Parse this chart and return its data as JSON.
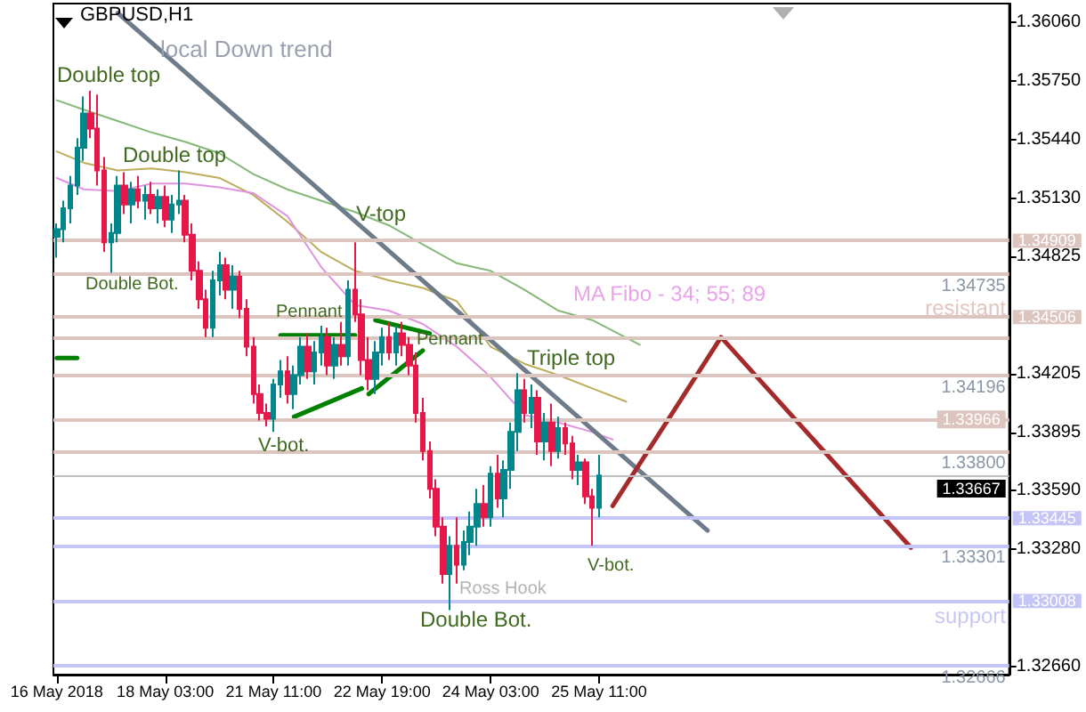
{
  "chart_data": {
    "type": "candlestick",
    "categories": [
      "16 May 2018",
      null,
      null,
      null,
      null,
      null,
      null,
      null,
      null,
      null,
      null,
      null,
      null,
      null,
      null,
      null,
      "18 May 03:00",
      null,
      null,
      null,
      null,
      null,
      null,
      null,
      null,
      null,
      null,
      null,
      null,
      null,
      null,
      null,
      "21 May 11:00",
      null,
      null,
      null,
      null,
      null,
      null,
      null,
      null,
      null,
      null,
      null,
      null,
      null,
      null,
      null,
      "22 May 19:00",
      null,
      null,
      null,
      null,
      null,
      null,
      null,
      null,
      null,
      null,
      null,
      null,
      null,
      null,
      null,
      "24 May 03:00",
      null,
      null,
      null,
      null,
      null,
      null,
      null,
      null,
      null,
      null,
      null,
      null,
      null,
      null,
      null,
      "25 May 11:00",
      null,
      null,
      null,
      null,
      null,
      null,
      null,
      null,
      null,
      null,
      null,
      null,
      null,
      null,
      null,
      null,
      null,
      null,
      null,
      null,
      null,
      null,
      null,
      null,
      null,
      null,
      null,
      null,
      null,
      null,
      null,
      null,
      null,
      null,
      null,
      null,
      null,
      null,
      null,
      null,
      null,
      null,
      null,
      null,
      null,
      null,
      null,
      null,
      null,
      null,
      null,
      null,
      null,
      null,
      null,
      null,
      null,
      null,
      null,
      null
    ],
    "ohlc": [
      [
        1.3493,
        1.35,
        1.3482,
        1.3497
      ],
      [
        1.3497,
        1.3512,
        1.349,
        1.3508
      ],
      [
        1.3508,
        1.3525,
        1.35,
        1.352
      ],
      [
        1.352,
        1.3545,
        1.3515,
        1.354
      ],
      [
        1.354,
        1.3567,
        1.3533,
        1.3558
      ],
      [
        1.3558,
        1.357,
        1.3545,
        1.355
      ],
      [
        1.355,
        1.3568,
        1.352,
        1.3528
      ],
      [
        1.3528,
        1.3535,
        1.3485,
        1.349
      ],
      [
        1.349,
        1.35,
        1.3474,
        1.3495
      ],
      [
        1.3495,
        1.3525,
        1.349,
        1.352
      ],
      [
        1.352,
        1.3527,
        1.3505,
        1.351
      ],
      [
        1.351,
        1.3522,
        1.35,
        1.3518
      ],
      [
        1.3518,
        1.3525,
        1.3508,
        1.3512
      ],
      [
        1.3512,
        1.352,
        1.3502,
        1.3515
      ],
      [
        1.3515,
        1.3522,
        1.3505,
        1.3508
      ],
      [
        1.3508,
        1.3518,
        1.35,
        1.3514
      ],
      [
        1.3514,
        1.352,
        1.3498,
        1.3502
      ],
      [
        1.3502,
        1.3515,
        1.3495,
        1.351
      ],
      [
        1.351,
        1.3528,
        1.3505,
        1.3512
      ],
      [
        1.3512,
        1.3515,
        1.349,
        1.3494
      ],
      [
        1.3494,
        1.35,
        1.347,
        1.3475
      ],
      [
        1.3475,
        1.348,
        1.3455,
        1.346
      ],
      [
        1.346,
        1.3465,
        1.344,
        1.3445
      ],
      [
        1.3445,
        1.3475,
        1.344,
        1.347
      ],
      [
        1.347,
        1.3485,
        1.3462,
        1.3478
      ],
      [
        1.3478,
        1.3482,
        1.346,
        1.3465
      ],
      [
        1.3465,
        1.3478,
        1.3455,
        1.3472
      ],
      [
        1.3472,
        1.3475,
        1.345,
        1.3455
      ],
      [
        1.3455,
        1.346,
        1.343,
        1.3435
      ],
      [
        1.3435,
        1.344,
        1.3405,
        1.341
      ],
      [
        1.341,
        1.3415,
        1.3396,
        1.34
      ],
      [
        1.34,
        1.3405,
        1.3393,
        1.3397
      ],
      [
        1.3397,
        1.3418,
        1.339,
        1.3415
      ],
      [
        1.3415,
        1.3428,
        1.3408,
        1.3422
      ],
      [
        1.3422,
        1.343,
        1.3405,
        1.341
      ],
      [
        1.341,
        1.3425,
        1.3402,
        1.342
      ],
      [
        1.342,
        1.344,
        1.3415,
        1.3435
      ],
      [
        1.3435,
        1.3442,
        1.3418,
        1.3422
      ],
      [
        1.3422,
        1.3438,
        1.3415,
        1.3432
      ],
      [
        1.3432,
        1.3446,
        1.3425,
        1.344
      ],
      [
        1.344,
        1.3445,
        1.342,
        1.3425
      ],
      [
        1.3425,
        1.344,
        1.3418,
        1.3436
      ],
      [
        1.3436,
        1.3448,
        1.3425,
        1.343
      ],
      [
        1.343,
        1.347,
        1.3425,
        1.3465
      ],
      [
        1.3465,
        1.349,
        1.3448,
        1.3452
      ],
      [
        1.3452,
        1.346,
        1.342,
        1.3428
      ],
      [
        1.3428,
        1.344,
        1.3412,
        1.3418
      ],
      [
        1.3418,
        1.3438,
        1.341,
        1.3432
      ],
      [
        1.3432,
        1.3445,
        1.3425,
        1.344
      ],
      [
        1.344,
        1.3448,
        1.3428,
        1.3432
      ],
      [
        1.3432,
        1.3446,
        1.3425,
        1.3442
      ],
      [
        1.3442,
        1.3448,
        1.343,
        1.3436
      ],
      [
        1.3436,
        1.344,
        1.342,
        1.3425
      ],
      [
        1.3425,
        1.3432,
        1.3395,
        1.34
      ],
      [
        1.34,
        1.3408,
        1.3375,
        1.338
      ],
      [
        1.338,
        1.3385,
        1.3355,
        1.336
      ],
      [
        1.336,
        1.3365,
        1.3335,
        1.334
      ],
      [
        1.334,
        1.3345,
        1.331,
        1.3315
      ],
      [
        1.3315,
        1.3335,
        1.3296,
        1.333
      ],
      [
        1.333,
        1.3345,
        1.331,
        1.332
      ],
      [
        1.332,
        1.3338,
        1.3317,
        1.3332
      ],
      [
        1.3332,
        1.3348,
        1.3325,
        1.334
      ],
      [
        1.334,
        1.336,
        1.333,
        1.3352
      ],
      [
        1.3352,
        1.3362,
        1.334,
        1.3345
      ],
      [
        1.3345,
        1.3372,
        1.334,
        1.3368
      ],
      [
        1.3368,
        1.3378,
        1.335,
        1.3355
      ],
      [
        1.3355,
        1.3375,
        1.3345,
        1.337
      ],
      [
        1.337,
        1.3395,
        1.336,
        1.339
      ],
      [
        1.339,
        1.3421,
        1.338,
        1.3412
      ],
      [
        1.3412,
        1.3418,
        1.3395,
        1.34
      ],
      [
        1.34,
        1.3415,
        1.3392,
        1.3408
      ],
      [
        1.3408,
        1.3412,
        1.3378,
        1.3385
      ],
      [
        1.3385,
        1.34,
        1.3375,
        1.3395
      ],
      [
        1.3395,
        1.3405,
        1.3372,
        1.338
      ],
      [
        1.338,
        1.3398,
        1.3376,
        1.3392
      ],
      [
        1.3392,
        1.3395,
        1.3378,
        1.3384
      ],
      [
        1.3384,
        1.3388,
        1.3365,
        1.337
      ],
      [
        1.337,
        1.3378,
        1.3362,
        1.3374
      ],
      [
        1.3374,
        1.3376,
        1.3352,
        1.3356
      ],
      [
        1.3356,
        1.336,
        1.333,
        1.335
      ],
      [
        1.335,
        1.3378,
        1.3345,
        1.3367
      ],
      null,
      null,
      null,
      null,
      null,
      null,
      null,
      null,
      null,
      null,
      null,
      null,
      null,
      null,
      null,
      null,
      null,
      null,
      null,
      null,
      null,
      null,
      null,
      null,
      null,
      null,
      null,
      null,
      null,
      null,
      null,
      null,
      null,
      null,
      null,
      null,
      null,
      null,
      null,
      null,
      null,
      null,
      null,
      null,
      null,
      null,
      null,
      null,
      null,
      null,
      null,
      null,
      null,
      null,
      null,
      null,
      null,
      null,
      null,
      null
    ],
    "colors": [
      "#00868b",
      "#00868b",
      "#00868b",
      "#00868b",
      "#00868b",
      "#e8174a",
      "#e8174a",
      "#e8174a",
      "#00868b",
      "#00868b",
      "#e8174a",
      "#00868b",
      "#e8174a",
      "#00868b",
      "#e8174a",
      "#00868b",
      "#e8174a",
      "#00868b",
      "#00868b",
      "#e8174a",
      "#e8174a",
      "#e8174a",
      "#e8174a",
      "#00868b",
      "#00868b",
      "#e8174a",
      "#00868b",
      "#e8174a",
      "#e8174a",
      "#e8174a",
      "#e8174a",
      "#e8174a",
      "#00868b",
      "#00868b",
      "#e8174a",
      "#00868b",
      "#00868b",
      "#e8174a",
      "#00868b",
      "#00868b",
      "#e8174a",
      "#00868b",
      "#e8174a",
      "#00868b",
      "#e8174a",
      "#e8174a",
      "#e8174a",
      "#00868b",
      "#00868b",
      "#e8174a",
      "#00868b",
      "#e8174a",
      "#e8174a",
      "#e8174a",
      "#e8174a",
      "#e8174a",
      "#e8174a",
      "#e8174a",
      "#00868b",
      "#e8174a",
      "#00868b",
      "#00868b",
      "#00868b",
      "#e8174a",
      "#00868b",
      "#e8174a",
      "#00868b",
      "#00868b",
      "#00868b",
      "#e8174a",
      "#00868b",
      "#e8174a",
      "#00868b",
      "#e8174a",
      "#00868b",
      "#e8174a",
      "#e8174a",
      "#00868b",
      "#e8174a",
      "#e8174a",
      "#00868b",
      null,
      null,
      null,
      null,
      null,
      null,
      null,
      null,
      null,
      null,
      null,
      null,
      null,
      null,
      null,
      null,
      null,
      null,
      null,
      null,
      null,
      null,
      null,
      null,
      null,
      null,
      null,
      null,
      null,
      null,
      null,
      null,
      null,
      null,
      null,
      null,
      null,
      null,
      null,
      null,
      null,
      null,
      null,
      null,
      null,
      null,
      null,
      null,
      null,
      null,
      null,
      null,
      null,
      null,
      null,
      null,
      null,
      null,
      null,
      null
    ],
    "series": [
      {
        "type": "line",
        "color": "#86b878",
        "values": [
          1.3565,
          null,
          null,
          null,
          1.356,
          null,
          null,
          null,
          null,
          1.3554,
          null,
          null,
          null,
          null,
          1.3548,
          null,
          null,
          null,
          null,
          1.3543,
          null,
          null,
          null,
          null,
          1.3537,
          null,
          null,
          null,
          null,
          1.3526,
          null,
          null,
          null,
          null,
          1.3518,
          null,
          null,
          null,
          null,
          1.3512,
          null,
          null,
          null,
          null,
          1.3506,
          null,
          null,
          null,
          null,
          1.3499,
          null,
          null,
          null,
          null,
          1.3489,
          null,
          null,
          null,
          null,
          1.3479,
          null,
          null,
          null,
          null,
          1.3475,
          null,
          null,
          null,
          null,
          1.3465,
          null,
          null,
          null,
          null,
          1.3454,
          null,
          null,
          null,
          null,
          1.3449,
          null,
          null,
          null,
          null,
          null,
          null,
          1.3436,
          null,
          null,
          null,
          null,
          null,
          null,
          null,
          null,
          null,
          null,
          null,
          null,
          null,
          null,
          null,
          null,
          null,
          null,
          null,
          null,
          null,
          null,
          null,
          null,
          null,
          null,
          null,
          null,
          null,
          null,
          null,
          null,
          null,
          null,
          null,
          null,
          null,
          null,
          null,
          null,
          null,
          null,
          null,
          null,
          null,
          null,
          null,
          null,
          null,
          null,
          null,
          null,
          null,
          null
        ]
      },
      {
        "type": "line",
        "color": "#bcae5c",
        "values": [
          1.3538,
          null,
          null,
          null,
          1.3532,
          null,
          null,
          null,
          null,
          1.3528,
          null,
          null,
          null,
          null,
          1.3529,
          null,
          null,
          null,
          null,
          1.3527,
          null,
          null,
          null,
          null,
          1.3524,
          null,
          null,
          null,
          null,
          1.3515,
          null,
          null,
          null,
          null,
          1.3501,
          null,
          null,
          null,
          null,
          1.3485,
          null,
          null,
          null,
          null,
          1.3475,
          null,
          null,
          null,
          null,
          1.347,
          null,
          null,
          null,
          null,
          1.3466,
          null,
          null,
          null,
          null,
          1.3459,
          null,
          null,
          null,
          null,
          1.3435,
          null,
          null,
          null,
          null,
          1.3426,
          null,
          null,
          null,
          null,
          1.342,
          null,
          null,
          null,
          null,
          1.3413,
          null,
          null,
          null,
          null,
          1.3406,
          null,
          null,
          null,
          null,
          null,
          null,
          null,
          null,
          null,
          null,
          null,
          null,
          null,
          null,
          null,
          null,
          null,
          null,
          null,
          null,
          null,
          null,
          null,
          null,
          null,
          null,
          null,
          null,
          null,
          null,
          null,
          null,
          null,
          null,
          null,
          null,
          null,
          null,
          null,
          null,
          null,
          null,
          null,
          null,
          null,
          null,
          null,
          null,
          null,
          null,
          null,
          null,
          null,
          null,
          null,
          null
        ]
      },
      {
        "type": "line",
        "color": "#e092e0",
        "values": [
          1.3524,
          null,
          null,
          null,
          1.3518,
          null,
          null,
          null,
          null,
          1.3517,
          null,
          null,
          null,
          null,
          1.3521,
          null,
          null,
          null,
          null,
          1.3521,
          null,
          null,
          null,
          null,
          1.3519,
          null,
          null,
          null,
          null,
          1.3516,
          null,
          null,
          null,
          null,
          1.3504,
          null,
          null,
          null,
          null,
          1.3477,
          null,
          null,
          null,
          null,
          1.3457,
          null,
          null,
          null,
          null,
          1.3454,
          null,
          null,
          null,
          null,
          1.3447,
          null,
          null,
          null,
          null,
          1.3435,
          null,
          null,
          null,
          null,
          1.3419,
          null,
          null,
          null,
          null,
          1.3399,
          null,
          null,
          null,
          null,
          1.3395,
          null,
          null,
          null,
          null,
          1.339,
          null,
          null,
          1.3386,
          null,
          null,
          null,
          null,
          null,
          null,
          null,
          null,
          null,
          null,
          null,
          null,
          null,
          null,
          null,
          null,
          null,
          null,
          null,
          null,
          null,
          null,
          null,
          null,
          null,
          null,
          null,
          null,
          null,
          null,
          null,
          null,
          null,
          null,
          null,
          null,
          null,
          null,
          null,
          null,
          null,
          null,
          null,
          null,
          null,
          null,
          null,
          null,
          null,
          null,
          null,
          null,
          null,
          null,
          null,
          null,
          null,
          null
        ]
      },
      {
        "type": "line",
        "color": "#6e7b8b",
        "values": [
          null,
          null,
          null,
          null,
          null,
          null,
          null,
          null,
          null,
          1.3611,
          null,
          null,
          null,
          null,
          null,
          null,
          null,
          null,
          null,
          null,
          null,
          null,
          null,
          null,
          null,
          null,
          null,
          null,
          null,
          null,
          null,
          null,
          null,
          null,
          null,
          null,
          null,
          null,
          null,
          null,
          null,
          null,
          null,
          null,
          null,
          null,
          null,
          null,
          null,
          null,
          null,
          null,
          null,
          null,
          null,
          null,
          null,
          null,
          null,
          null,
          null,
          null,
          null,
          null,
          null,
          null,
          null,
          null,
          null,
          null,
          null,
          null,
          null,
          null,
          null,
          null,
          null,
          null,
          null,
          null,
          null,
          null,
          null,
          null,
          null,
          null,
          null,
          null,
          null,
          null,
          null,
          null,
          null,
          null,
          null,
          null,
          1.3338,
          null,
          null,
          null,
          null,
          null,
          null,
          null,
          null,
          null,
          null,
          null,
          null,
          null,
          null,
          null,
          null,
          null,
          null,
          null,
          null,
          null,
          null,
          null,
          null,
          null,
          null,
          null,
          null,
          null,
          null,
          null,
          null,
          null,
          null,
          null,
          null,
          null,
          null,
          null,
          null,
          null,
          null,
          null,
          null
        ]
      },
      {
        "type": "line",
        "color": "#a52a2a",
        "values": [
          null,
          null,
          null,
          null,
          null,
          null,
          null,
          null,
          null,
          null,
          null,
          null,
          null,
          null,
          null,
          null,
          null,
          null,
          null,
          null,
          null,
          null,
          null,
          null,
          null,
          null,
          null,
          null,
          null,
          null,
          null,
          null,
          null,
          null,
          null,
          null,
          null,
          null,
          null,
          null,
          null,
          null,
          null,
          null,
          null,
          null,
          null,
          null,
          null,
          null,
          null,
          null,
          null,
          null,
          null,
          null,
          null,
          null,
          null,
          null,
          null,
          null,
          null,
          null,
          null,
          null,
          null,
          null,
          null,
          null,
          null,
          null,
          null,
          null,
          null,
          null,
          null,
          null,
          null,
          null,
          null,
          null,
          1.3351,
          null,
          null,
          null,
          null,
          null,
          null,
          null,
          null,
          null,
          null,
          null,
          null,
          null,
          null,
          null,
          1.344,
          null,
          null,
          null,
          null,
          null,
          null,
          null,
          null,
          null,
          null,
          null,
          null,
          null,
          null,
          null,
          null,
          null,
          null,
          null,
          null,
          null,
          null,
          null,
          null,
          null,
          null,
          null,
          1.3329,
          null,
          null,
          null,
          null,
          null,
          null,
          null,
          null,
          null,
          null,
          null,
          null,
          null,
          null
        ]
      },
      {
        "type": "line",
        "color": "#008000",
        "values": [
          1.3429,
          null,
          null,
          1.3429,
          null,
          null,
          null,
          null,
          null,
          null,
          null,
          null,
          null,
          null,
          null,
          null,
          null,
          null,
          null,
          null,
          null,
          null,
          null,
          null,
          null,
          null,
          null,
          null,
          null,
          null,
          null,
          null,
          null,
          null,
          null,
          null,
          null,
          null,
          null,
          null,
          null,
          null,
          null,
          null,
          null,
          null,
          null,
          null,
          null,
          null,
          null,
          null,
          null,
          null,
          null,
          null,
          null,
          null,
          null,
          null,
          null,
          null,
          null,
          null,
          null,
          null,
          null,
          null,
          null,
          null,
          null,
          null,
          null,
          null,
          null,
          null,
          null,
          null,
          null,
          null,
          null,
          null,
          null,
          null,
          null,
          null,
          null,
          null,
          null,
          null,
          null,
          null,
          null,
          null,
          null,
          null,
          null,
          null,
          null,
          null,
          null,
          null,
          null,
          null,
          null,
          null,
          null,
          null,
          null,
          null,
          null,
          null,
          null,
          null,
          null,
          null,
          null,
          null,
          null,
          null,
          null,
          null,
          null,
          null,
          null,
          null,
          null,
          null,
          null,
          null,
          null,
          null,
          null,
          null,
          null,
          null,
          null,
          null,
          null,
          null,
          null
        ]
      },
      {
        "type": "line",
        "color": "#008000",
        "values": [
          null,
          null,
          null,
          null,
          null,
          null,
          null,
          null,
          null,
          null,
          null,
          null,
          null,
          null,
          null,
          null,
          null,
          null,
          null,
          null,
          null,
          null,
          null,
          null,
          null,
          null,
          null,
          null,
          null,
          null,
          null,
          null,
          null,
          1.3441,
          null,
          null,
          null,
          null,
          null,
          null,
          null,
          null,
          null,
          null,
          1.3441,
          null,
          null,
          null,
          null,
          null,
          null,
          null,
          null,
          null,
          null,
          null,
          null,
          null,
          null,
          null,
          null,
          null,
          null,
          null,
          null,
          null,
          null,
          null,
          null,
          null,
          null,
          null,
          null,
          null,
          null,
          null,
          null,
          null,
          null,
          null,
          null,
          null,
          null,
          null,
          null,
          null,
          null,
          null,
          null,
          null,
          null,
          null,
          null,
          null,
          null,
          null,
          null,
          null,
          null,
          null,
          null,
          null,
          null,
          null,
          null,
          null,
          null,
          null,
          null,
          null,
          null,
          null,
          null,
          null,
          null,
          null,
          null,
          null,
          null,
          null,
          null,
          null,
          null,
          null,
          null,
          null,
          null,
          null,
          null,
          null,
          null,
          null,
          null,
          null,
          null,
          null,
          null,
          null,
          null,
          null,
          null
        ]
      },
      {
        "type": "line",
        "color": "#008000",
        "values": [
          null,
          null,
          null,
          null,
          null,
          null,
          null,
          null,
          null,
          null,
          null,
          null,
          null,
          null,
          null,
          null,
          null,
          null,
          null,
          null,
          null,
          null,
          null,
          null,
          null,
          null,
          null,
          null,
          null,
          null,
          null,
          null,
          null,
          null,
          null,
          1.3398,
          null,
          null,
          null,
          null,
          null,
          null,
          null,
          null,
          null,
          1.3413,
          null,
          null,
          null,
          null,
          null,
          null,
          null,
          null,
          null,
          null,
          null,
          null,
          null,
          null,
          null,
          null,
          null,
          null,
          null,
          null,
          null,
          null,
          null,
          null,
          null,
          null,
          null,
          null,
          null,
          null,
          null,
          null,
          null,
          null,
          null,
          null,
          null,
          null,
          null,
          null,
          null,
          null,
          null,
          null,
          null,
          null,
          null,
          null,
          null,
          null,
          null,
          null,
          null,
          null,
          null,
          null,
          null,
          null,
          null,
          null,
          null,
          null,
          null,
          null,
          null,
          null,
          null,
          null,
          null,
          null,
          null,
          null,
          null,
          null,
          null,
          null,
          null,
          null,
          null,
          null,
          null,
          null,
          null,
          null,
          null,
          null,
          null,
          null,
          null,
          null,
          null,
          null,
          null,
          null,
          null
        ]
      },
      {
        "type": "line",
        "color": "#008000",
        "values": [
          null,
          null,
          null,
          null,
          null,
          null,
          null,
          null,
          null,
          null,
          null,
          null,
          null,
          null,
          null,
          null,
          null,
          null,
          null,
          null,
          null,
          null,
          null,
          null,
          null,
          null,
          null,
          null,
          null,
          null,
          null,
          null,
          null,
          null,
          null,
          null,
          null,
          null,
          null,
          null,
          null,
          null,
          null,
          null,
          null,
          null,
          null,
          1.3449,
          null,
          null,
          null,
          null,
          null,
          null,
          null,
          1.3442,
          null,
          null,
          null,
          null,
          null,
          null,
          null,
          null,
          null,
          null,
          null,
          null,
          null,
          null,
          null,
          null,
          null,
          null,
          null,
          null,
          null,
          null,
          null,
          null,
          null,
          null,
          null,
          null,
          null,
          null,
          null,
          null,
          null,
          null,
          null,
          null,
          null,
          null,
          null,
          null,
          null,
          null,
          null,
          null,
          null,
          null,
          null,
          null,
          null,
          null,
          null,
          null,
          null,
          null,
          null,
          null,
          null,
          null,
          null,
          null,
          null,
          null,
          null,
          null,
          null,
          null,
          null,
          null,
          null,
          null,
          null,
          null,
          null,
          null,
          null,
          null,
          null,
          null,
          null,
          null,
          null,
          null,
          null,
          null,
          null
        ]
      },
      {
        "type": "line",
        "color": "#008000",
        "values": [
          null,
          null,
          null,
          null,
          null,
          null,
          null,
          null,
          null,
          null,
          null,
          null,
          null,
          null,
          null,
          null,
          null,
          null,
          null,
          null,
          null,
          null,
          null,
          null,
          null,
          null,
          null,
          null,
          null,
          null,
          null,
          null,
          null,
          null,
          null,
          null,
          null,
          null,
          null,
          null,
          null,
          null,
          null,
          null,
          null,
          null,
          1.341,
          null,
          null,
          null,
          null,
          null,
          null,
          null,
          1.3433,
          null,
          null,
          null,
          null,
          null,
          null,
          null,
          null,
          null,
          null,
          null,
          null,
          null,
          null,
          null,
          null,
          null,
          null,
          null,
          null,
          null,
          null,
          null,
          null,
          null,
          null,
          null,
          null,
          null,
          null,
          null,
          null,
          null,
          null,
          null,
          null,
          null,
          null,
          null,
          null,
          null,
          null,
          null,
          null,
          null,
          null,
          null,
          null,
          null,
          null,
          null,
          null,
          null,
          null,
          null,
          null,
          null,
          null,
          null,
          null,
          null,
          null,
          null,
          null,
          null,
          null,
          null,
          null,
          null,
          null,
          null,
          null,
          null,
          null,
          null,
          null,
          null,
          null,
          null,
          null,
          null,
          null,
          null,
          null,
          null,
          null
        ]
      }
    ],
    "marker": "none",
    "line_style": "solid",
    "ylim": [
      1.3262,
      1.3616
    ],
    "yticks": [
      {
        "value": 1.3606,
        "label": "1.36060"
      },
      {
        "value": 1.3575,
        "label": "1.35750"
      },
      {
        "value": 1.3544,
        "label": "1.35440"
      },
      {
        "value": 1.3513,
        "label": "1.35130"
      },
      {
        "value": 1.34825,
        "label": "1.34825"
      },
      {
        "value": 1.34205,
        "label": "1.34205"
      },
      {
        "value": 1.33895,
        "label": "1.33895"
      },
      {
        "value": 1.3359,
        "label": "1.33590"
      },
      {
        "value": 1.3328,
        "label": "1.33280"
      },
      {
        "value": 1.3266,
        "label": "1.32660"
      }
    ],
    "ref_lines": [
      {
        "axis": "y",
        "value": 1.34909,
        "label": "1.34909",
        "color": "#dcc5be"
      },
      {
        "axis": "y",
        "value": 1.34735,
        "label": "1.34735",
        "color": "#dcc5be"
      },
      {
        "axis": "y",
        "value": 1.34506,
        "label": "1.34506",
        "color": "#dcc5be"
      },
      {
        "axis": "y",
        "value": 1.344,
        "color": "#dcc5be"
      },
      {
        "axis": "y",
        "value": 1.34196,
        "label": "1.34196",
        "color": "#dcc5be"
      },
      {
        "axis": "y",
        "value": 1.33966,
        "label": "1.33966",
        "color": "#dcc5be"
      },
      {
        "axis": "y",
        "value": 1.338,
        "label": "1.33800",
        "color": "#dcc5be"
      },
      {
        "axis": "y",
        "value": 1.33667,
        "label": "1.33667",
        "color": "#c0c0c0"
      },
      {
        "axis": "y",
        "value": 1.33445,
        "label": "1.33445",
        "color": "#c4c4f6"
      },
      {
        "axis": "y",
        "value": 1.33301,
        "label": "1.33301",
        "color": "#c4c4f6"
      },
      {
        "axis": "y",
        "value": 1.33008,
        "label": "1.33008",
        "color": "#c4c4f6"
      },
      {
        "axis": "y",
        "value": 1.32666,
        "label": "1.32666",
        "color": "#c4c4f6"
      }
    ],
    "annotations": [
      "GBPUSD,H1",
      "local Down trend",
      "Double top",
      "Double top",
      "Double Bot.",
      {
        "text": "V-top",
        "y": 1.349
      },
      {
        "text": "Pennant",
        "y": 1.3441
      },
      {
        "text": "Pennant",
        "y": 1.3449
      },
      "V-bot.",
      "Triple top",
      "MA Fibo - 34; 55; 89",
      "resistant",
      "Ross Hook",
      "Double Bot.",
      "V-bot.",
      "support"
    ]
  }
}
